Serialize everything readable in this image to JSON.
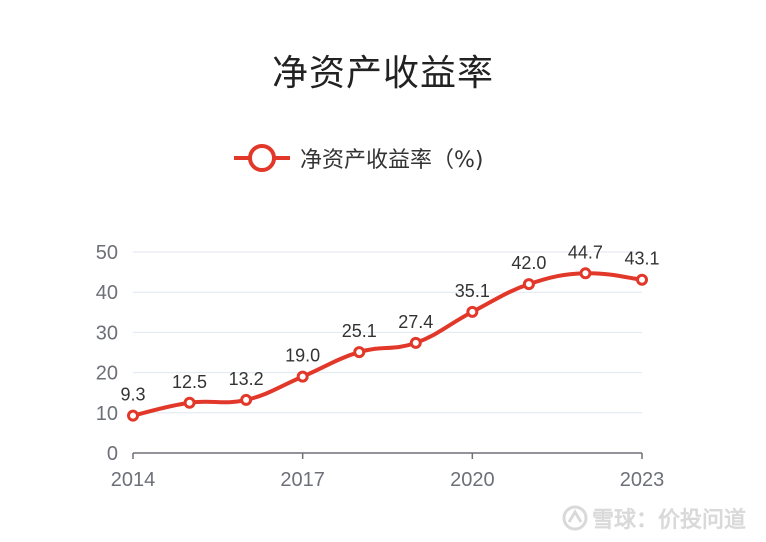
{
  "chart_data": {
    "type": "line",
    "title": "净资产收益率",
    "x": [
      "2014",
      "2015",
      "2016",
      "2017",
      "2018",
      "2019",
      "2020",
      "2021",
      "2022",
      "2023"
    ],
    "series": [
      {
        "name": "净资产收益率（%)",
        "values": [
          9.3,
          12.5,
          13.2,
          19.0,
          25.1,
          27.4,
          35.1,
          42.0,
          44.7,
          43.1
        ]
      }
    ],
    "data_labels": [
      "9.3",
      "12.5",
      "13.2",
      "19.0",
      "25.1",
      "27.4",
      "35.1",
      "42.0",
      "44.7",
      "43.1"
    ],
    "x_tick_labels": [
      "2014",
      "2017",
      "2020",
      "2023"
    ],
    "y_tick_labels": [
      "0",
      "10",
      "20",
      "30",
      "40",
      "50"
    ],
    "ylim": [
      0,
      50
    ],
    "xlabel": "",
    "ylabel": "",
    "grid": true,
    "legend_position": "top-center",
    "line_color": "#e2382a",
    "grid_color": "#e0e6f1"
  },
  "watermark": {
    "text": "雪球：价投问道",
    "icon": "snowball-logo-icon"
  }
}
